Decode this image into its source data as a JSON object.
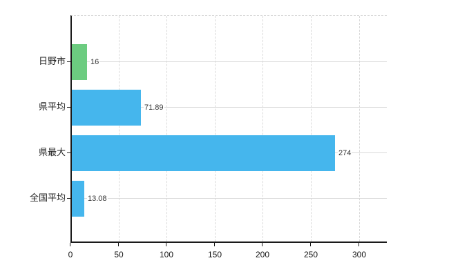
{
  "colors": {
    "green": "#6ccc80",
    "blue": "#45b6ed",
    "grid": "#d9d9d9",
    "axis": "#1a1a1a",
    "value_text": "#333333",
    "category_text": "#222222",
    "tick_text": "#111111"
  },
  "chart_data": {
    "type": "bar",
    "orientation": "horizontal",
    "title": "",
    "xlabel": "",
    "ylabel": "",
    "categories": [
      "日野市",
      "県平均",
      "県最大",
      "全国平均"
    ],
    "values": [
      16,
      71.89,
      274,
      13.08
    ],
    "value_labels": [
      "16",
      "71.89",
      "274",
      "13.08"
    ],
    "bar_color_names": [
      "green",
      "blue",
      "blue",
      "blue"
    ],
    "x_ticks": [
      0,
      50,
      100,
      150,
      200,
      250,
      300
    ],
    "x_tick_labels": [
      "0",
      "50",
      "100",
      "150",
      "200",
      "250",
      "300"
    ],
    "xlim": [
      0,
      329
    ],
    "grid": true,
    "legend": false
  }
}
